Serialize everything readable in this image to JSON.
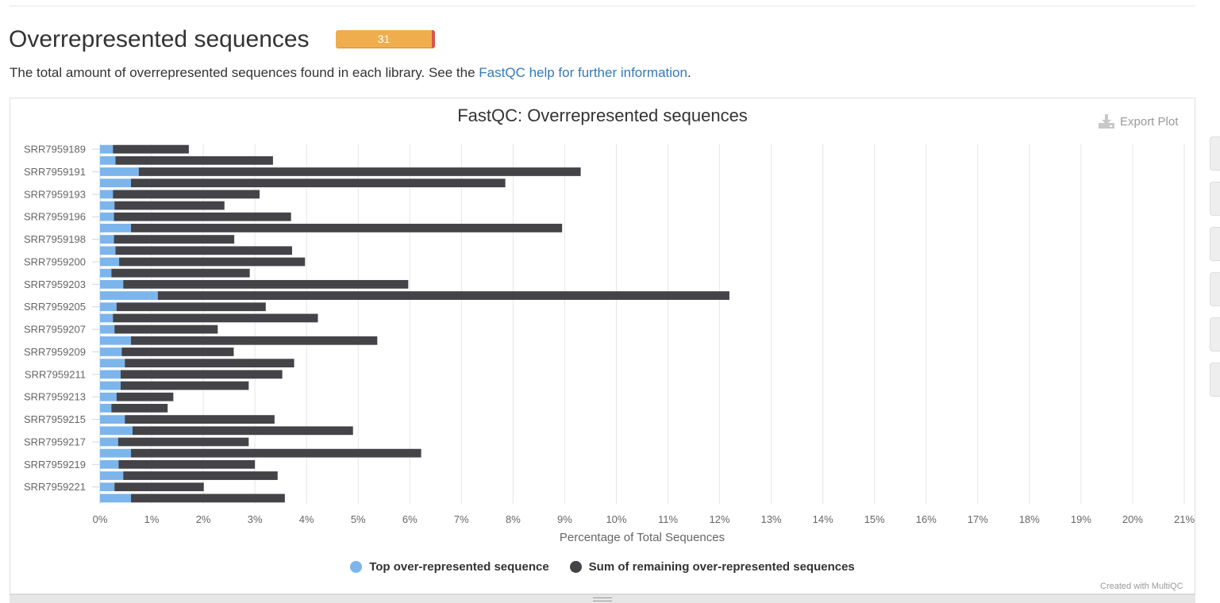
{
  "section": {
    "title": "Overrepresented sequences",
    "status_count": "31",
    "description_prefix": "The total amount of overrepresented sequences found in each library. See the ",
    "description_link": "FastQC help for further information",
    "description_suffix": "."
  },
  "plot": {
    "export_label": "Export Plot",
    "credit": "Created with MultiQC"
  },
  "colors": {
    "top_series": "#7cb5ec",
    "remaining_series": "#434348",
    "status_warn": "#f0ad4e",
    "status_fail": "#d9534f",
    "link": "#337ab7"
  },
  "chart_data": {
    "type": "bar",
    "orientation": "horizontal",
    "stacked": true,
    "title": "FastQC: Overrepresented sequences",
    "xlabel": "Percentage of Total Sequences",
    "xlim": [
      0,
      21
    ],
    "x_ticks": [
      "0%",
      "1%",
      "2%",
      "3%",
      "4%",
      "5%",
      "6%",
      "7%",
      "8%",
      "9%",
      "10%",
      "11%",
      "12%",
      "13%",
      "14%",
      "15%",
      "16%",
      "17%",
      "18%",
      "19%",
      "20%",
      "21%"
    ],
    "grid": true,
    "legend_position": "bottom",
    "categories": [
      "SRR7959189",
      "",
      "SRR7959191",
      "",
      "SRR7959193",
      "",
      "SRR7959196",
      "",
      "SRR7959198",
      "",
      "SRR7959200",
      "",
      "SRR7959203",
      "",
      "SRR7959205",
      "",
      "SRR7959207",
      "",
      "SRR7959209",
      "",
      "SRR7959211",
      "",
      "SRR7959213",
      "",
      "SRR7959215",
      "",
      "SRR7959217",
      "",
      "SRR7959219",
      "",
      "SRR7959221",
      ""
    ],
    "series": [
      {
        "name": "Top over-represented sequence",
        "color": "#7cb5ec",
        "values": [
          0.25,
          0.3,
          0.75,
          0.6,
          0.25,
          0.28,
          0.27,
          0.6,
          0.27,
          0.3,
          0.37,
          0.22,
          0.45,
          1.12,
          0.32,
          0.25,
          0.28,
          0.6,
          0.42,
          0.48,
          0.4,
          0.4,
          0.32,
          0.22,
          0.48,
          0.63,
          0.35,
          0.6,
          0.36,
          0.45,
          0.28,
          0.6
        ]
      },
      {
        "name": "Sum of remaining over-represented sequences",
        "color": "#434348",
        "values": [
          1.47,
          3.05,
          8.56,
          7.25,
          2.84,
          2.13,
          3.43,
          8.35,
          2.33,
          3.42,
          3.6,
          2.68,
          5.52,
          11.07,
          2.89,
          3.97,
          2.0,
          4.77,
          2.17,
          3.28,
          3.13,
          2.48,
          1.1,
          1.09,
          2.9,
          4.27,
          2.53,
          5.62,
          2.64,
          2.99,
          1.73,
          2.98
        ]
      }
    ]
  }
}
